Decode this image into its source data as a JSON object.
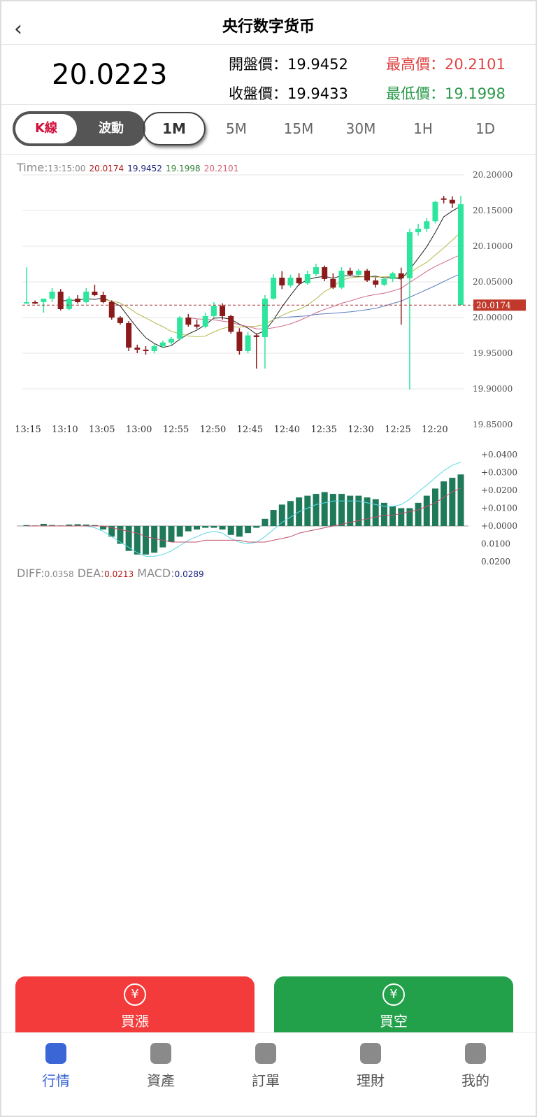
{
  "header": {
    "title": "央行数字货币"
  },
  "quote": {
    "price": "20.0223",
    "open_label": "開盤價：",
    "open": "19.9452",
    "high_label": "最高價：",
    "high": "20.2101",
    "close_label": "收盤價：",
    "close": "19.9433",
    "low_label": "最低價：",
    "low": "19.1998"
  },
  "tabs": {
    "modes": [
      "K線",
      "波動"
    ],
    "periods": [
      "1M",
      "5M",
      "15M",
      "30M",
      "1H",
      "1D"
    ]
  },
  "info": {
    "time_label": "Time:",
    "time": "13:15:00",
    "values": [
      "19.9452",
      "19.1998",
      "20.2101"
    ]
  },
  "chart_data": [
    {
      "type": "candlestick",
      "up_color": "#2ee59d",
      "down_color": "#8b1a1a",
      "candles": [
        [
          20.0197,
          20.0706,
          20.019,
          20.0216
        ],
        [
          20.0216,
          20.024,
          20.019,
          20.0197
        ],
        [
          20.0216,
          20.0265,
          20.0069,
          20.0265
        ],
        [
          20.0265,
          20.0412,
          20.0216,
          20.0363
        ],
        [
          20.0363,
          20.04,
          20.01,
          20.0118
        ],
        [
          20.0118,
          20.03,
          20.01,
          20.0265
        ],
        [
          20.0265,
          20.0314,
          20.0197,
          20.0216
        ],
        [
          20.0216,
          20.0412,
          20.02,
          20.0363
        ],
        [
          20.0363,
          20.046,
          20.03,
          20.0314
        ],
        [
          20.0314,
          20.0363,
          20.02,
          20.0216
        ],
        [
          20.0216,
          20.024,
          19.9971,
          20.0
        ],
        [
          20.0,
          20.002,
          19.99,
          19.9922
        ],
        [
          19.9922,
          19.995,
          19.953,
          19.9579
        ],
        [
          19.9579,
          19.962,
          19.95,
          19.955
        ],
        [
          19.955,
          19.96,
          19.9481,
          19.953
        ],
        [
          19.953,
          19.9628,
          19.95,
          19.96
        ],
        [
          19.96,
          19.9677,
          19.958,
          19.965
        ],
        [
          19.965,
          19.9726,
          19.962,
          19.97
        ],
        [
          19.97,
          20.002,
          19.968,
          20.0
        ],
        [
          20.0,
          20.005,
          19.9873,
          19.99
        ],
        [
          19.99,
          19.9971,
          19.9844,
          19.9873
        ],
        [
          19.9873,
          20.0069,
          19.985,
          20.002
        ],
        [
          20.002,
          20.0216,
          20.0,
          20.0165
        ],
        [
          20.0165,
          20.02,
          19.9971,
          20.002
        ],
        [
          20.002,
          20.004,
          19.9775,
          19.98
        ],
        [
          19.98,
          19.985,
          19.9481,
          19.953
        ],
        [
          19.953,
          19.98,
          19.95,
          19.975
        ],
        [
          19.975,
          19.978,
          19.9285,
          19.9726
        ],
        [
          19.9726,
          20.0314,
          19.9285,
          20.0265
        ],
        [
          20.0265,
          20.0608,
          20.025,
          20.0559
        ],
        [
          20.0559,
          20.065,
          20.04,
          20.045
        ],
        [
          20.045,
          20.06,
          20.042,
          20.0559
        ],
        [
          20.0559,
          20.062,
          20.045,
          20.048
        ],
        [
          20.048,
          20.0657,
          20.046,
          20.0608
        ],
        [
          20.0608,
          20.0755,
          20.058,
          20.0706
        ],
        [
          20.0706,
          20.073,
          20.051,
          20.054
        ],
        [
          20.054,
          20.062,
          20.04,
          20.042
        ],
        [
          20.042,
          20.0706,
          20.04,
          20.0657
        ],
        [
          20.0657,
          20.07,
          20.058,
          20.06
        ],
        [
          20.06,
          20.068,
          20.058,
          20.0657
        ],
        [
          20.0657,
          20.068,
          20.05,
          20.052
        ],
        [
          20.052,
          20.056,
          20.042,
          20.0461
        ],
        [
          20.0461,
          20.056,
          20.044,
          20.054
        ],
        [
          20.054,
          20.064,
          20.05,
          20.062
        ],
        [
          20.062,
          20.07,
          19.99,
          20.055
        ],
        [
          20.055,
          20.1245,
          19.8991,
          20.1196
        ],
        [
          20.1196,
          20.1314,
          20.115,
          20.1245
        ],
        [
          20.1245,
          20.1392,
          20.12,
          20.135
        ],
        [
          20.135,
          20.1637,
          20.132,
          20.162
        ],
        [
          20.167,
          20.1706,
          20.16,
          20.165
        ],
        [
          20.165,
          20.17,
          20.1539,
          20.16
        ],
        [
          20.0174,
          20.1706,
          20.0174,
          20.1588
        ]
      ],
      "last": {
        "value": 20.0174,
        "label": "20.0174"
      },
      "xticks": [
        "13:15",
        "13:10",
        "13:05",
        "13:00",
        "12:55",
        "12:50",
        "12:45",
        "12:40",
        "12:35",
        "12:30",
        "12:25",
        "12:20"
      ],
      "ylim": [
        19.85,
        20.2
      ],
      "yticks": [
        {
          "value": 20.2,
          "label": "20.20000"
        },
        {
          "value": 20.15,
          "label": "20.15000"
        },
        {
          "value": 20.1,
          "label": "20.10000"
        },
        {
          "value": 20.05,
          "label": "20.05000"
        },
        {
          "value": 20.0,
          "label": "20.00000"
        },
        {
          "value": 19.95,
          "label": "19.95000"
        },
        {
          "value": 19.9,
          "label": "19.90000"
        },
        {
          "value": 19.85,
          "label": "19.85000"
        }
      ]
    },
    {
      "type": "bar",
      "color": "#1f7a5a",
      "values": [
        0.0005,
        0.0003,
        0.0012,
        0.0005,
        0.0003,
        0.0008,
        0.001,
        0.0008,
        0.0005,
        -0.002,
        -0.006,
        -0.01,
        -0.014,
        -0.016,
        -0.016,
        -0.015,
        -0.012,
        -0.009,
        -0.006,
        -0.003,
        -0.002,
        -0.001,
        -0.001,
        -0.002,
        -0.005,
        -0.006,
        -0.004,
        -0.001,
        0.004,
        0.009,
        0.012,
        0.014,
        0.016,
        0.017,
        0.018,
        0.019,
        0.018,
        0.018,
        0.017,
        0.017,
        0.016,
        0.015,
        0.013,
        0.011,
        0.01,
        0.01,
        0.013,
        0.017,
        0.021,
        0.025,
        0.027,
        0.0289
      ],
      "series": [
        {
          "name": "DIFF:",
          "color": "#5ad8e6",
          "values": [
            0,
            0,
            0,
            0,
            0,
            0,
            0,
            0,
            -0.001,
            -0.003,
            -0.006,
            -0.009,
            -0.012,
            -0.015,
            -0.017,
            -0.017,
            -0.016,
            -0.014,
            -0.011,
            -0.008,
            -0.006,
            -0.004,
            -0.003,
            -0.004,
            -0.007,
            -0.009,
            -0.01,
            -0.009,
            -0.006,
            -0.002,
            0.002,
            0.005,
            0.008,
            0.01,
            0.012,
            0.013,
            0.014,
            0.014,
            0.014,
            0.014,
            0.013,
            0.012,
            0.011,
            0.011,
            0.012,
            0.015,
            0.019,
            0.023,
            0.027,
            0.031,
            0.034,
            0.0358
          ]
        },
        {
          "name": "DEA:",
          "color": "#c0506a",
          "values": [
            0,
            0,
            0,
            0,
            0,
            0,
            0,
            0,
            0,
            0,
            -0.001,
            -0.002,
            -0.003,
            -0.004,
            -0.006,
            -0.007,
            -0.008,
            -0.009,
            -0.009,
            -0.009,
            -0.009,
            -0.008,
            -0.008,
            -0.008,
            -0.008,
            -0.008,
            -0.009,
            -0.009,
            -0.009,
            -0.008,
            -0.007,
            -0.006,
            -0.004,
            -0.003,
            -0.002,
            -0.001,
            0,
            0.001,
            0.002,
            0.003,
            0.004,
            0.005,
            0.006,
            0.006,
            0.007,
            0.008,
            0.009,
            0.011,
            0.013,
            0.016,
            0.019,
            0.0213
          ]
        }
      ],
      "readout": [
        {
          "name": "DIFF:",
          "value": "0.0358"
        },
        {
          "name": "DEA:",
          "value": "0.0213"
        },
        {
          "name": "MACD:",
          "value": "0.0289"
        }
      ],
      "ylim": [
        -0.02,
        0.04
      ],
      "yticks": [
        {
          "value": 0.04,
          "label": "+0.0400"
        },
        {
          "value": 0.03,
          "label": "+0.0300"
        },
        {
          "value": 0.02,
          "label": "+0.0200"
        },
        {
          "value": 0.01,
          "label": "+0.0100"
        },
        {
          "value": 0,
          "label": "+0.0000"
        },
        {
          "value": -0.01,
          "label": "0.0100"
        },
        {
          "value": -0.02,
          "label": "0.0200"
        }
      ]
    }
  ],
  "actions": [
    "買漲",
    "買空"
  ],
  "nav": [
    "行情",
    "資產",
    "訂單",
    "理財",
    "我的"
  ]
}
